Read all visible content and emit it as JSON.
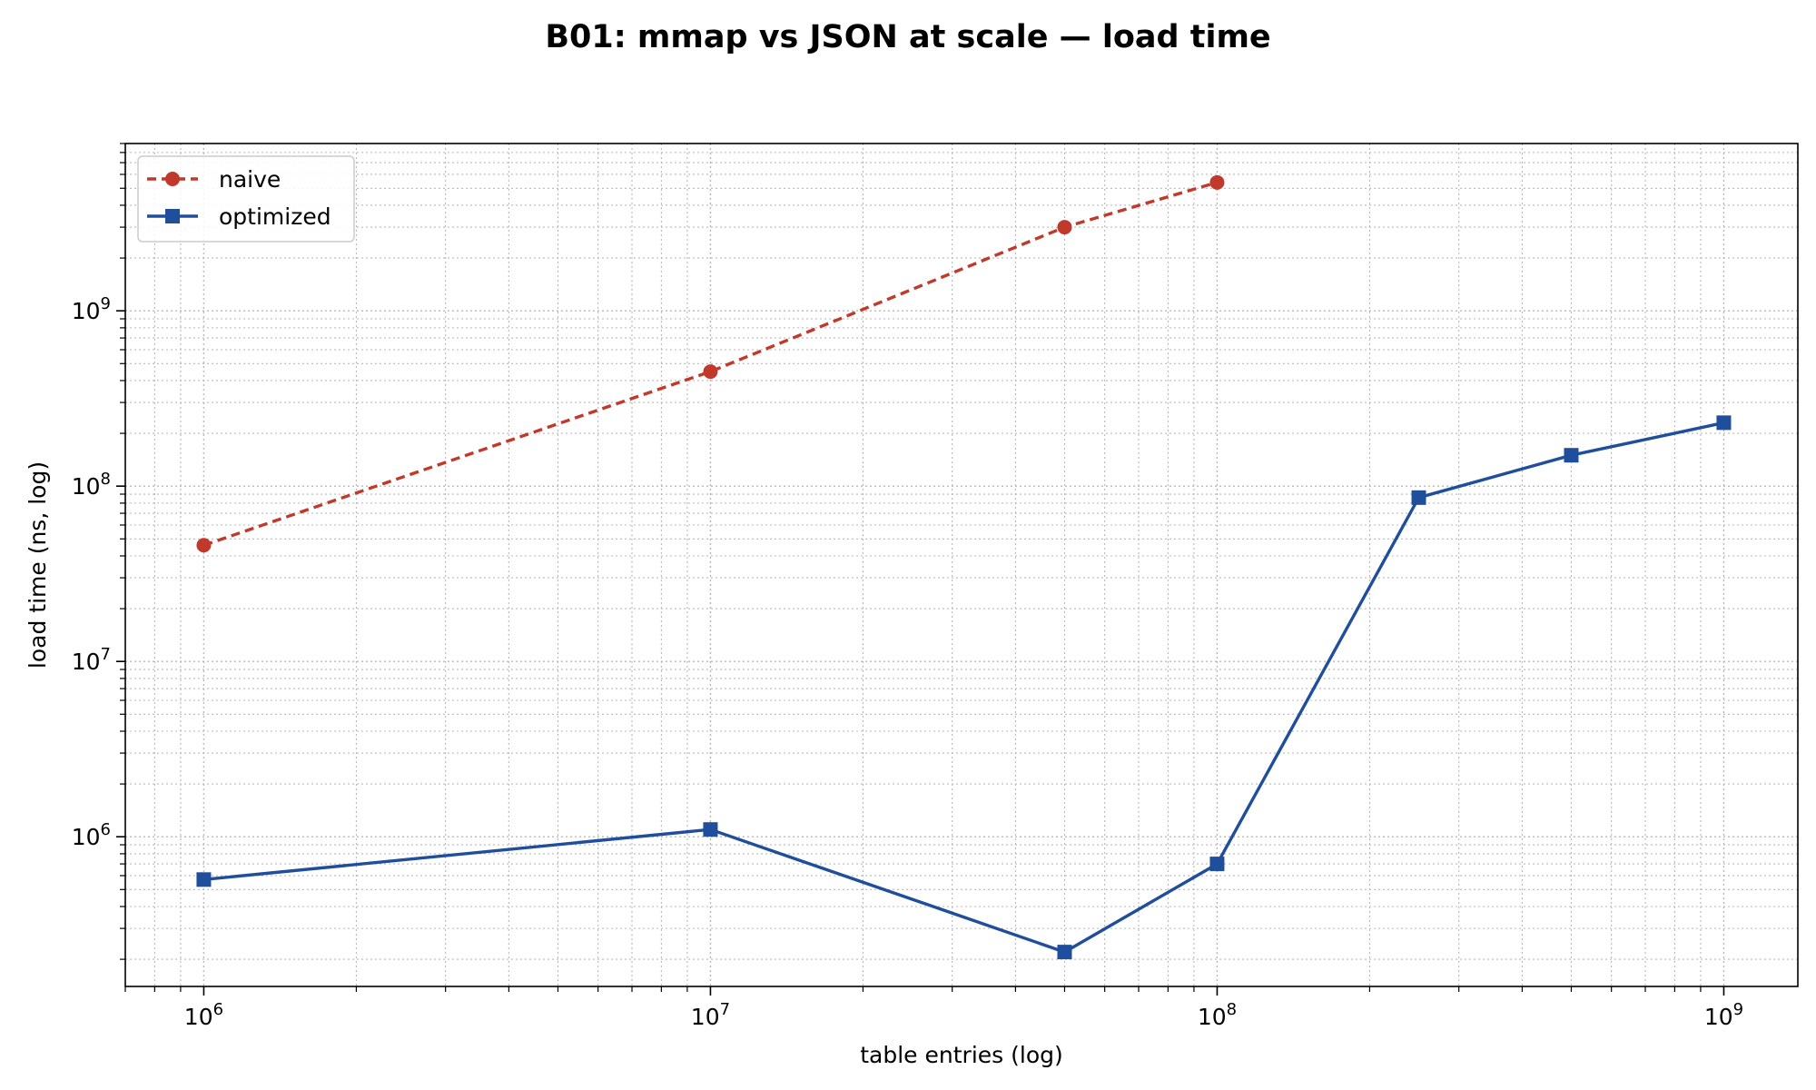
{
  "chart_data": {
    "type": "line",
    "title": "B01: mmap vs JSON at scale — load time",
    "xlabel": "table entries (log)",
    "ylabel": "load time (ns, log)",
    "xscale": "log",
    "yscale": "log",
    "xlim": [
      700000,
      1400000000
    ],
    "ylim": [
      140000,
      9000000000
    ],
    "grid": true,
    "legend_position": "top-left",
    "x_ticks": [
      {
        "value": 1000000,
        "base": "10",
        "exp": "6"
      },
      {
        "value": 10000000,
        "base": "10",
        "exp": "7"
      },
      {
        "value": 100000000,
        "base": "10",
        "exp": "8"
      },
      {
        "value": 1000000000,
        "base": "10",
        "exp": "9"
      }
    ],
    "y_ticks": [
      {
        "value": 1000000,
        "base": "10",
        "exp": "6"
      },
      {
        "value": 10000000,
        "base": "10",
        "exp": "7"
      },
      {
        "value": 100000000,
        "base": "10",
        "exp": "8"
      },
      {
        "value": 1000000000,
        "base": "10",
        "exp": "9"
      }
    ],
    "series": [
      {
        "name": "naive",
        "color": "#c0392b",
        "line_style": "dashed",
        "marker": "circle",
        "x": [
          1000000,
          10000000,
          50000000,
          100000000
        ],
        "y": [
          46000000,
          450000000,
          3000000000,
          5400000000
        ]
      },
      {
        "name": "optimized",
        "color": "#1f4e9c",
        "line_style": "solid",
        "marker": "square",
        "x": [
          1000000,
          10000000,
          50000000,
          100000000,
          250000000,
          500000000,
          1000000000
        ],
        "y": [
          570000,
          1100000,
          220000,
          700000,
          86000000,
          150000000,
          230000000
        ]
      }
    ]
  }
}
